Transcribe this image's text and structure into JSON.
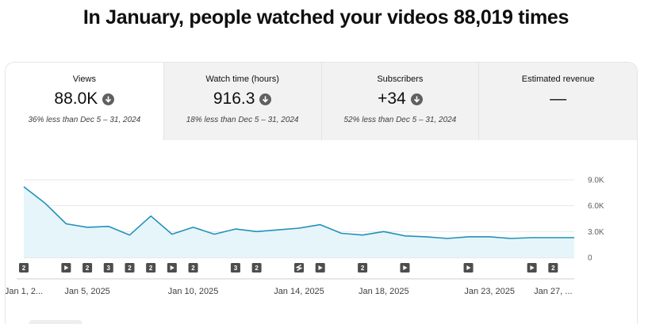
{
  "headline": "In January, people watched your videos 88,019 times",
  "metrics": [
    {
      "label": "Views",
      "value": "88.0K",
      "trend_icon": "arrow-down-icon",
      "comparison": "36% less than Dec 5 – 31, 2024"
    },
    {
      "label": "Watch time (hours)",
      "value": "916.3",
      "trend_icon": "arrow-down-icon",
      "comparison": "18% less than Dec 5 – 31, 2024"
    },
    {
      "label": "Subscribers",
      "value": "+34",
      "trend_icon": "arrow-down-icon",
      "comparison": "52% less than Dec 5 – 31, 2024"
    },
    {
      "label": "Estimated revenue",
      "value": "—",
      "comparison": ""
    }
  ],
  "chart_data": {
    "type": "area",
    "x": [
      "Jan 1",
      "Jan 2",
      "Jan 3",
      "Jan 4",
      "Jan 5",
      "Jan 6",
      "Jan 7",
      "Jan 8",
      "Jan 9",
      "Jan 10",
      "Jan 11",
      "Jan 12",
      "Jan 13",
      "Jan 14",
      "Jan 15",
      "Jan 16",
      "Jan 17",
      "Jan 18",
      "Jan 19",
      "Jan 20",
      "Jan 21",
      "Jan 22",
      "Jan 23",
      "Jan 24",
      "Jan 25",
      "Jan 26",
      "Jan 27"
    ],
    "values": [
      8200,
      6300,
      3900,
      3500,
      3600,
      2600,
      4800,
      2700,
      3500,
      2700,
      3300,
      3000,
      3200,
      3400,
      3800,
      2800,
      2600,
      3000,
      2500,
      2400,
      2200,
      2400,
      2400,
      2200,
      2300,
      2300,
      2300
    ],
    "y_ticks": [
      "9.0K",
      "6.0K",
      "3.0K",
      "0"
    ],
    "ylim": [
      0,
      9000
    ],
    "x_tick_labels": [
      {
        "index": 0,
        "label": "Jan 1, 2..."
      },
      {
        "index": 3,
        "label": "Jan 5, 2025"
      },
      {
        "index": 8,
        "label": "Jan 10, 2025"
      },
      {
        "index": 13,
        "label": "Jan 14, 2025"
      },
      {
        "index": 17,
        "label": "Jan 18, 2025"
      },
      {
        "index": 22,
        "label": "Jan 23, 2025"
      },
      {
        "index": 25,
        "label": "Jan 27, ..."
      }
    ],
    "markers": [
      {
        "index": 0,
        "kind": "count",
        "text": "2"
      },
      {
        "index": 2,
        "kind": "video",
        "text": ""
      },
      {
        "index": 3,
        "kind": "count",
        "text": "2"
      },
      {
        "index": 4,
        "kind": "count",
        "text": "3"
      },
      {
        "index": 5,
        "kind": "count",
        "text": "2"
      },
      {
        "index": 6,
        "kind": "count",
        "text": "2"
      },
      {
        "index": 7,
        "kind": "video",
        "text": ""
      },
      {
        "index": 8,
        "kind": "count",
        "text": "2"
      },
      {
        "index": 10,
        "kind": "count",
        "text": "3"
      },
      {
        "index": 11,
        "kind": "count",
        "text": "2"
      },
      {
        "index": 13,
        "kind": "short",
        "text": ""
      },
      {
        "index": 14,
        "kind": "video",
        "text": ""
      },
      {
        "index": 16,
        "kind": "count",
        "text": "2"
      },
      {
        "index": 18,
        "kind": "video",
        "text": ""
      },
      {
        "index": 21,
        "kind": "video",
        "text": ""
      },
      {
        "index": 24,
        "kind": "video",
        "text": ""
      },
      {
        "index": 25,
        "kind": "count",
        "text": "2"
      }
    ],
    "colors": {
      "line": "#2391b9",
      "fill": "#e6f5fa",
      "marker": "#4d4d4d"
    }
  }
}
